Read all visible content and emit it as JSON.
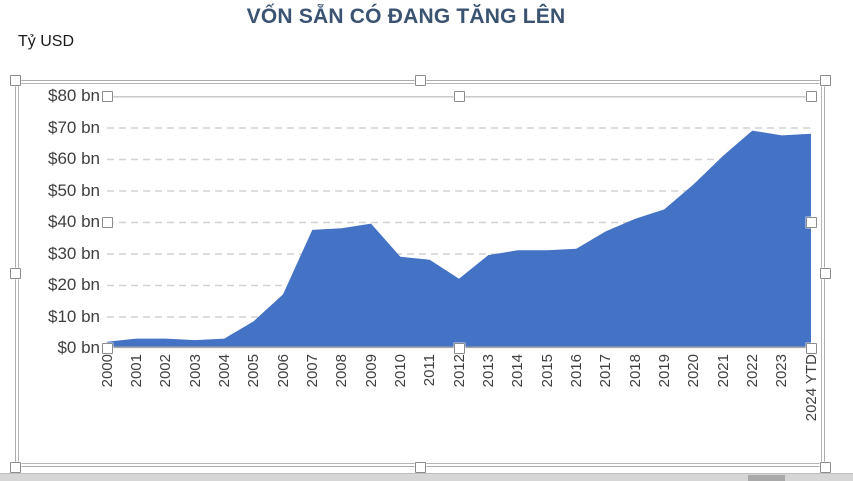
{
  "header": {
    "title": "VỐN SẴN CÓ ĐANG TĂNG LÊN",
    "unit_label": "Tỷ USD"
  },
  "chart_data": {
    "type": "area",
    "title": "VỐN SẴN CÓ ĐANG TĂNG LÊN",
    "ylabel": "Tỷ USD",
    "categories": [
      "2000",
      "2001",
      "2002",
      "2003",
      "2004",
      "2005",
      "2006",
      "2007",
      "2008",
      "2009",
      "2010",
      "2011",
      "2012",
      "2013",
      "2014",
      "2015",
      "2016",
      "2017",
      "2018",
      "2019",
      "2020",
      "2021",
      "2022",
      "2023",
      "2024 YTD"
    ],
    "values": [
      2,
      3,
      3,
      2.5,
      3,
      8.5,
      17,
      37.5,
      38,
      39.5,
      29,
      28,
      22,
      29.5,
      31,
      31,
      31.5,
      37,
      41,
      44,
      52,
      61,
      69,
      67.5,
      68
    ],
    "ylim": [
      0,
      80
    ],
    "ytick_step": 10,
    "ytick_labels": [
      "$80 bn",
      "$70 bn",
      "$60 bn",
      "$50 bn",
      "$40 bn",
      "$30 bn",
      "$20 bn",
      "$10 bn",
      "$0 bn"
    ],
    "grid": "horizontal-dashed",
    "legend": "none",
    "colors": {
      "area_fill": "#4472C4",
      "gridline": "#d2d2d2",
      "plot_top_border": "#c3c3c3",
      "axis_line": "#a6a6a6",
      "tick_label": "#3f3f3f",
      "title": "#3a5372"
    }
  },
  "selection": {
    "state": "chart-selected",
    "handle_fill": "#ffffff",
    "handle_border": "#8c8c8c",
    "frame_border": "#acacac"
  },
  "scrollbar": {
    "track_color": "#d6d6d6",
    "thumb_color": "#a9a9a9"
  }
}
